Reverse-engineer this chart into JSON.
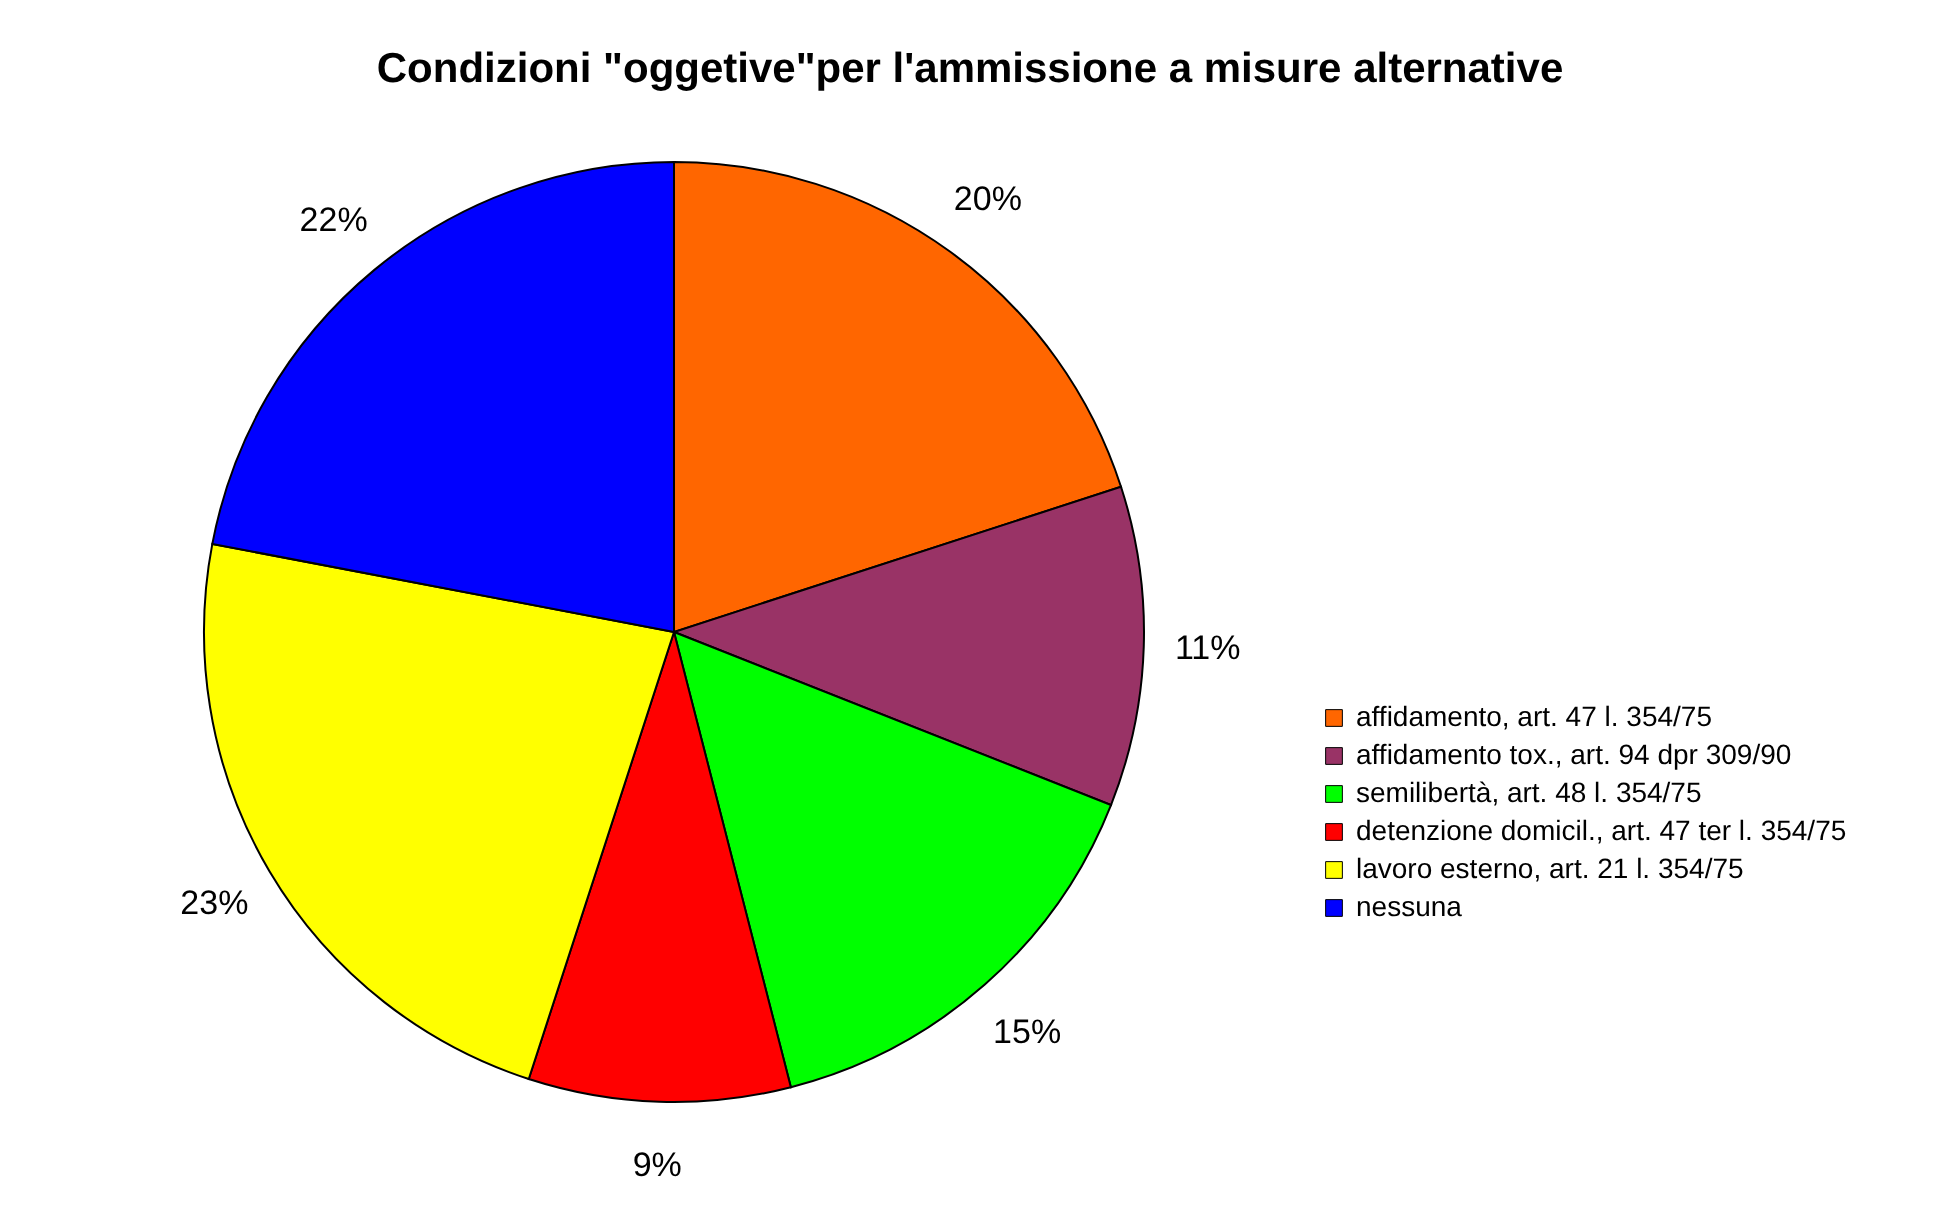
{
  "chart_data": {
    "type": "pie",
    "title": "Condizioni \"oggetive\"per l'ammissione a misure alternative",
    "categories": [
      "affidamento, art. 47 l. 354/75",
      "affidamento tox., art. 94 dpr 309/90",
      "semilibertà, art. 48 l. 354/75",
      "detenzione domicil., art. 47 ter l. 354/75",
      "lavoro esterno, art. 21 l. 354/75",
      "nessuna"
    ],
    "values": [
      20,
      11,
      15,
      9,
      23,
      22
    ],
    "colors": [
      "#ff6600",
      "#993366",
      "#00ff00",
      "#ff0000",
      "#ffff00",
      "#0000ff"
    ],
    "value_labels": [
      "20%",
      "11%",
      "15%",
      "9%",
      "23%",
      "22%"
    ],
    "legend": "right"
  }
}
